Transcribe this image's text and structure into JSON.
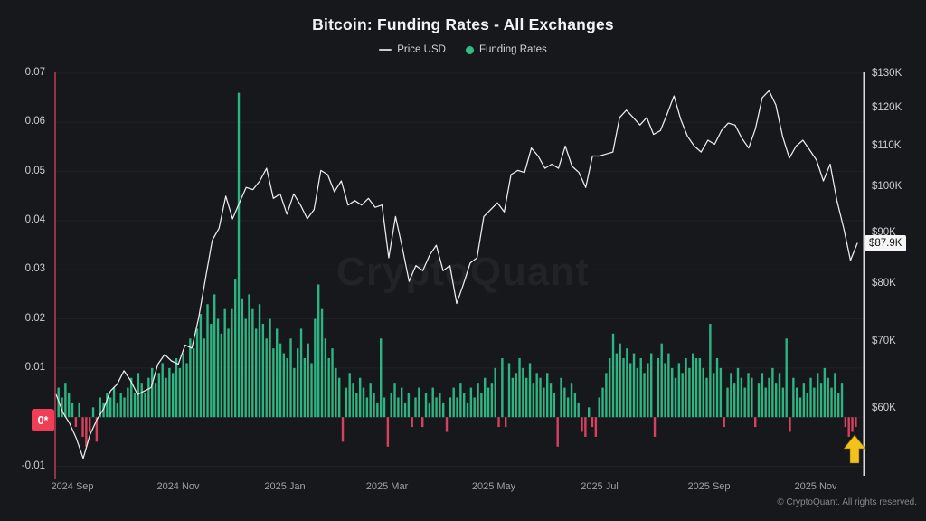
{
  "title": "Bitcoin: Funding Rates - All Exchanges",
  "legend": {
    "price": {
      "label": "Price USD",
      "color": "#e9eaec"
    },
    "funding": {
      "label": "Funding Rates",
      "color": "#2ebd85"
    }
  },
  "watermark": "CryptoQuant",
  "copyright": "© CryptoQuant. All rights reserved.",
  "annotations": {
    "zero_badge": "0*",
    "last_price_badge": "$87.9K",
    "arrow_color": "#f3c11c",
    "arrow_meaning": "up-arrow highlighting recent negative funding bars"
  },
  "colors": {
    "background": "#17181b",
    "grid": "#1f2126",
    "bar_positive": "#2db483",
    "bar_negative": "#d7415f",
    "price_line": "#eceded",
    "left_edge_line": "#b93a52",
    "right_edge_line": "#dcdcdc"
  },
  "chart_data": {
    "type": "mixed",
    "title": "Bitcoin: Funding Rates - All Exchanges",
    "x_axis": {
      "tick_labels": [
        "2024 Sep",
        "2024 Nov",
        "2025 Jan",
        "2025 Mar",
        "2025 May",
        "2025 Jul",
        "2025 Sep",
        "2025 Nov"
      ],
      "start_date": "2024-08-23",
      "end_date": "2025-11-26"
    },
    "left_axis": {
      "name": "Funding Rates",
      "scale": "linear",
      "tick_labels": [
        "0.07",
        "0.06",
        "0.05",
        "0.04",
        "0.03",
        "0.02",
        "0.01",
        "-0.01"
      ],
      "tick_values": [
        0.07,
        0.06,
        0.05,
        0.04,
        0.03,
        0.02,
        0.01,
        -0.01
      ],
      "range": [
        -0.012,
        0.07
      ]
    },
    "right_axis": {
      "name": "Price USD",
      "scale": "log",
      "tick_labels": [
        "$130K",
        "$120K",
        "$110K",
        "$100K",
        "$90K",
        "$80K",
        "$70K",
        "$60K"
      ],
      "tick_values_k": [
        130,
        120,
        110,
        100,
        90,
        80,
        70,
        60
      ]
    },
    "series": [
      {
        "name": "Funding Rates",
        "type": "bar",
        "axis": "left",
        "interval_days": 2,
        "values": [
          0.006,
          0.004,
          0.007,
          0.005,
          0.003,
          -0.002,
          0.003,
          -0.004,
          -0.006,
          -0.003,
          0.002,
          -0.005,
          0.004,
          0.003,
          0.005,
          0.004,
          0.006,
          0.003,
          0.005,
          0.004,
          0.006,
          0.008,
          0.005,
          0.009,
          0.007,
          0.005,
          0.008,
          0.01,
          0.007,
          0.009,
          0.011,
          0.008,
          0.01,
          0.009,
          0.012,
          0.01,
          0.013,
          0.011,
          0.016,
          0.014,
          0.018,
          0.021,
          0.016,
          0.023,
          0.019,
          0.025,
          0.02,
          0.017,
          0.022,
          0.018,
          0.022,
          0.028,
          0.066,
          0.024,
          0.02,
          0.025,
          0.022,
          0.018,
          0.023,
          0.019,
          0.016,
          0.02,
          0.014,
          0.018,
          0.015,
          0.013,
          0.012,
          0.016,
          0.01,
          0.014,
          0.018,
          0.012,
          0.015,
          0.011,
          0.02,
          0.027,
          0.022,
          0.016,
          0.012,
          0.014,
          0.01,
          0.008,
          -0.005,
          0.006,
          0.009,
          0.007,
          0.005,
          0.008,
          0.006,
          0.004,
          0.007,
          0.005,
          0.003,
          0.016,
          0.004,
          -0.006,
          0.005,
          0.007,
          0.004,
          0.006,
          0.003,
          0.005,
          -0.002,
          0.004,
          0.006,
          -0.002,
          0.005,
          0.003,
          0.006,
          0.004,
          0.005,
          0.003,
          -0.003,
          0.004,
          0.006,
          0.004,
          0.007,
          0.005,
          0.003,
          0.006,
          0.004,
          0.007,
          0.005,
          0.008,
          0.006,
          0.007,
          0.01,
          -0.002,
          0.012,
          -0.002,
          0.011,
          0.008,
          0.009,
          0.012,
          0.01,
          0.008,
          0.011,
          0.007,
          0.009,
          0.008,
          0.006,
          0.009,
          0.007,
          0.005,
          -0.006,
          0.008,
          0.006,
          0.004,
          0.007,
          0.005,
          0.003,
          -0.003,
          -0.004,
          0.002,
          -0.002,
          -0.004,
          0.004,
          0.006,
          0.009,
          0.012,
          0.017,
          0.013,
          0.015,
          0.012,
          0.014,
          0.011,
          0.013,
          0.01,
          0.012,
          0.009,
          0.011,
          0.013,
          -0.004,
          0.012,
          0.015,
          0.011,
          0.013,
          0.01,
          0.008,
          0.011,
          0.009,
          0.012,
          0.01,
          0.013,
          0.012,
          0.012,
          0.01,
          0.008,
          0.019,
          0.009,
          0.012,
          0.01,
          -0.002,
          0.006,
          0.009,
          0.007,
          0.01,
          0.008,
          0.006,
          0.009,
          0.008,
          -0.002,
          0.007,
          0.009,
          0.006,
          0.008,
          0.01,
          0.007,
          0.009,
          0.006,
          0.016,
          -0.003,
          0.008,
          0.006,
          0.004,
          0.007,
          0.005,
          0.008,
          0.006,
          0.009,
          0.007,
          0.01,
          0.008,
          0.006,
          0.009,
          0.005,
          0.007,
          -0.002,
          -0.004,
          -0.003,
          -0.002
        ]
      },
      {
        "name": "Price USD",
        "type": "line",
        "axis": "right",
        "interval_days": 3.9,
        "unit": "thousand USD",
        "values": [
          62,
          59.5,
          58,
          56,
          53.5,
          56.5,
          58.5,
          60,
          62.5,
          63.5,
          65.5,
          64,
          62,
          62.5,
          63,
          66.5,
          68,
          67,
          66.5,
          69.5,
          69,
          74,
          81,
          88.5,
          91,
          98,
          93,
          96.5,
          100,
          99.5,
          101.5,
          104.5,
          97.5,
          98.5,
          94,
          98.5,
          96,
          93,
          95,
          104,
          103,
          99,
          101.5,
          96,
          97,
          96,
          97.5,
          95.5,
          96,
          85,
          93.5,
          87,
          80.5,
          83.5,
          82.5,
          85.5,
          87.5,
          82.5,
          83.5,
          76.5,
          80,
          84,
          85,
          93.5,
          95,
          96.5,
          94.5,
          103,
          104,
          103.5,
          109.5,
          107.5,
          104.5,
          105.5,
          104.5,
          110,
          105,
          103.5,
          100,
          107.5,
          107.5,
          108,
          108.5,
          117.5,
          119.5,
          117.5,
          115.5,
          117.5,
          113,
          114,
          118.5,
          123.5,
          117,
          112.5,
          110,
          108.5,
          111.5,
          110.5,
          114,
          116,
          115.5,
          112,
          109.5,
          114.5,
          123,
          125,
          121,
          112.5,
          107,
          110,
          111.5,
          109,
          106.5,
          101.5,
          105.5,
          97,
          91,
          84.5,
          87.9
        ],
        "last_value_label": "$87.9K"
      }
    ]
  }
}
